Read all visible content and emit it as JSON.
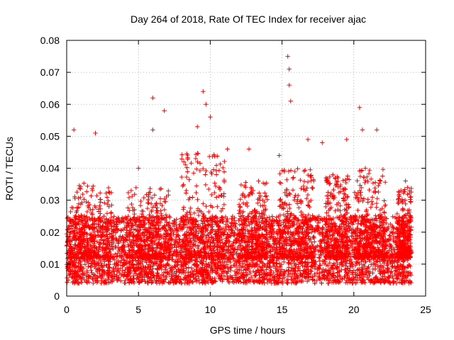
{
  "chart_data": {
    "type": "scatter",
    "title": "Day 264 of 2018, Rate Of TEC Index for receiver ajac",
    "xlabel": "GPS time / hours",
    "ylabel": "ROTI / TECUs",
    "xlim": [
      0,
      25
    ],
    "ylim": [
      0,
      0.08
    ],
    "xticks": [
      0,
      5,
      10,
      15,
      20,
      25
    ],
    "xtick_labels": [
      "0",
      "5",
      "10",
      "15",
      "20",
      "25"
    ],
    "yticks": [
      0,
      0.01,
      0.02,
      0.03,
      0.04,
      0.05,
      0.06,
      0.07,
      0.08
    ],
    "ytick_labels": [
      "0",
      "0.01",
      "0.02",
      "0.03",
      "0.04",
      "0.05",
      "0.06",
      "0.07",
      "0.08"
    ],
    "grid": true,
    "marker": "+",
    "series_color": "#ff0000",
    "data_coverage": {
      "x_range": [
        0,
        24
      ],
      "bulk_y_range": [
        0.004,
        0.025
      ]
    },
    "notable_points": [
      {
        "x": 0.5,
        "y": 0.052
      },
      {
        "x": 2.0,
        "y": 0.051
      },
      {
        "x": 5.0,
        "y": 0.04
      },
      {
        "x": 6.0,
        "y": 0.062
      },
      {
        "x": 6.0,
        "y": 0.052
      },
      {
        "x": 6.8,
        "y": 0.058
      },
      {
        "x": 9.1,
        "y": 0.053
      },
      {
        "x": 9.5,
        "y": 0.064
      },
      {
        "x": 9.7,
        "y": 0.06
      },
      {
        "x": 10.0,
        "y": 0.056
      },
      {
        "x": 11.2,
        "y": 0.046
      },
      {
        "x": 12.7,
        "y": 0.046
      },
      {
        "x": 14.8,
        "y": 0.044
      },
      {
        "x": 15.4,
        "y": 0.075
      },
      {
        "x": 15.5,
        "y": 0.071
      },
      {
        "x": 15.5,
        "y": 0.066
      },
      {
        "x": 15.6,
        "y": 0.061
      },
      {
        "x": 16.8,
        "y": 0.049
      },
      {
        "x": 17.8,
        "y": 0.048
      },
      {
        "x": 19.5,
        "y": 0.049
      },
      {
        "x": 20.4,
        "y": 0.059
      },
      {
        "x": 20.6,
        "y": 0.052
      },
      {
        "x": 21.6,
        "y": 0.052
      },
      {
        "x": 23.6,
        "y": 0.036
      }
    ]
  }
}
